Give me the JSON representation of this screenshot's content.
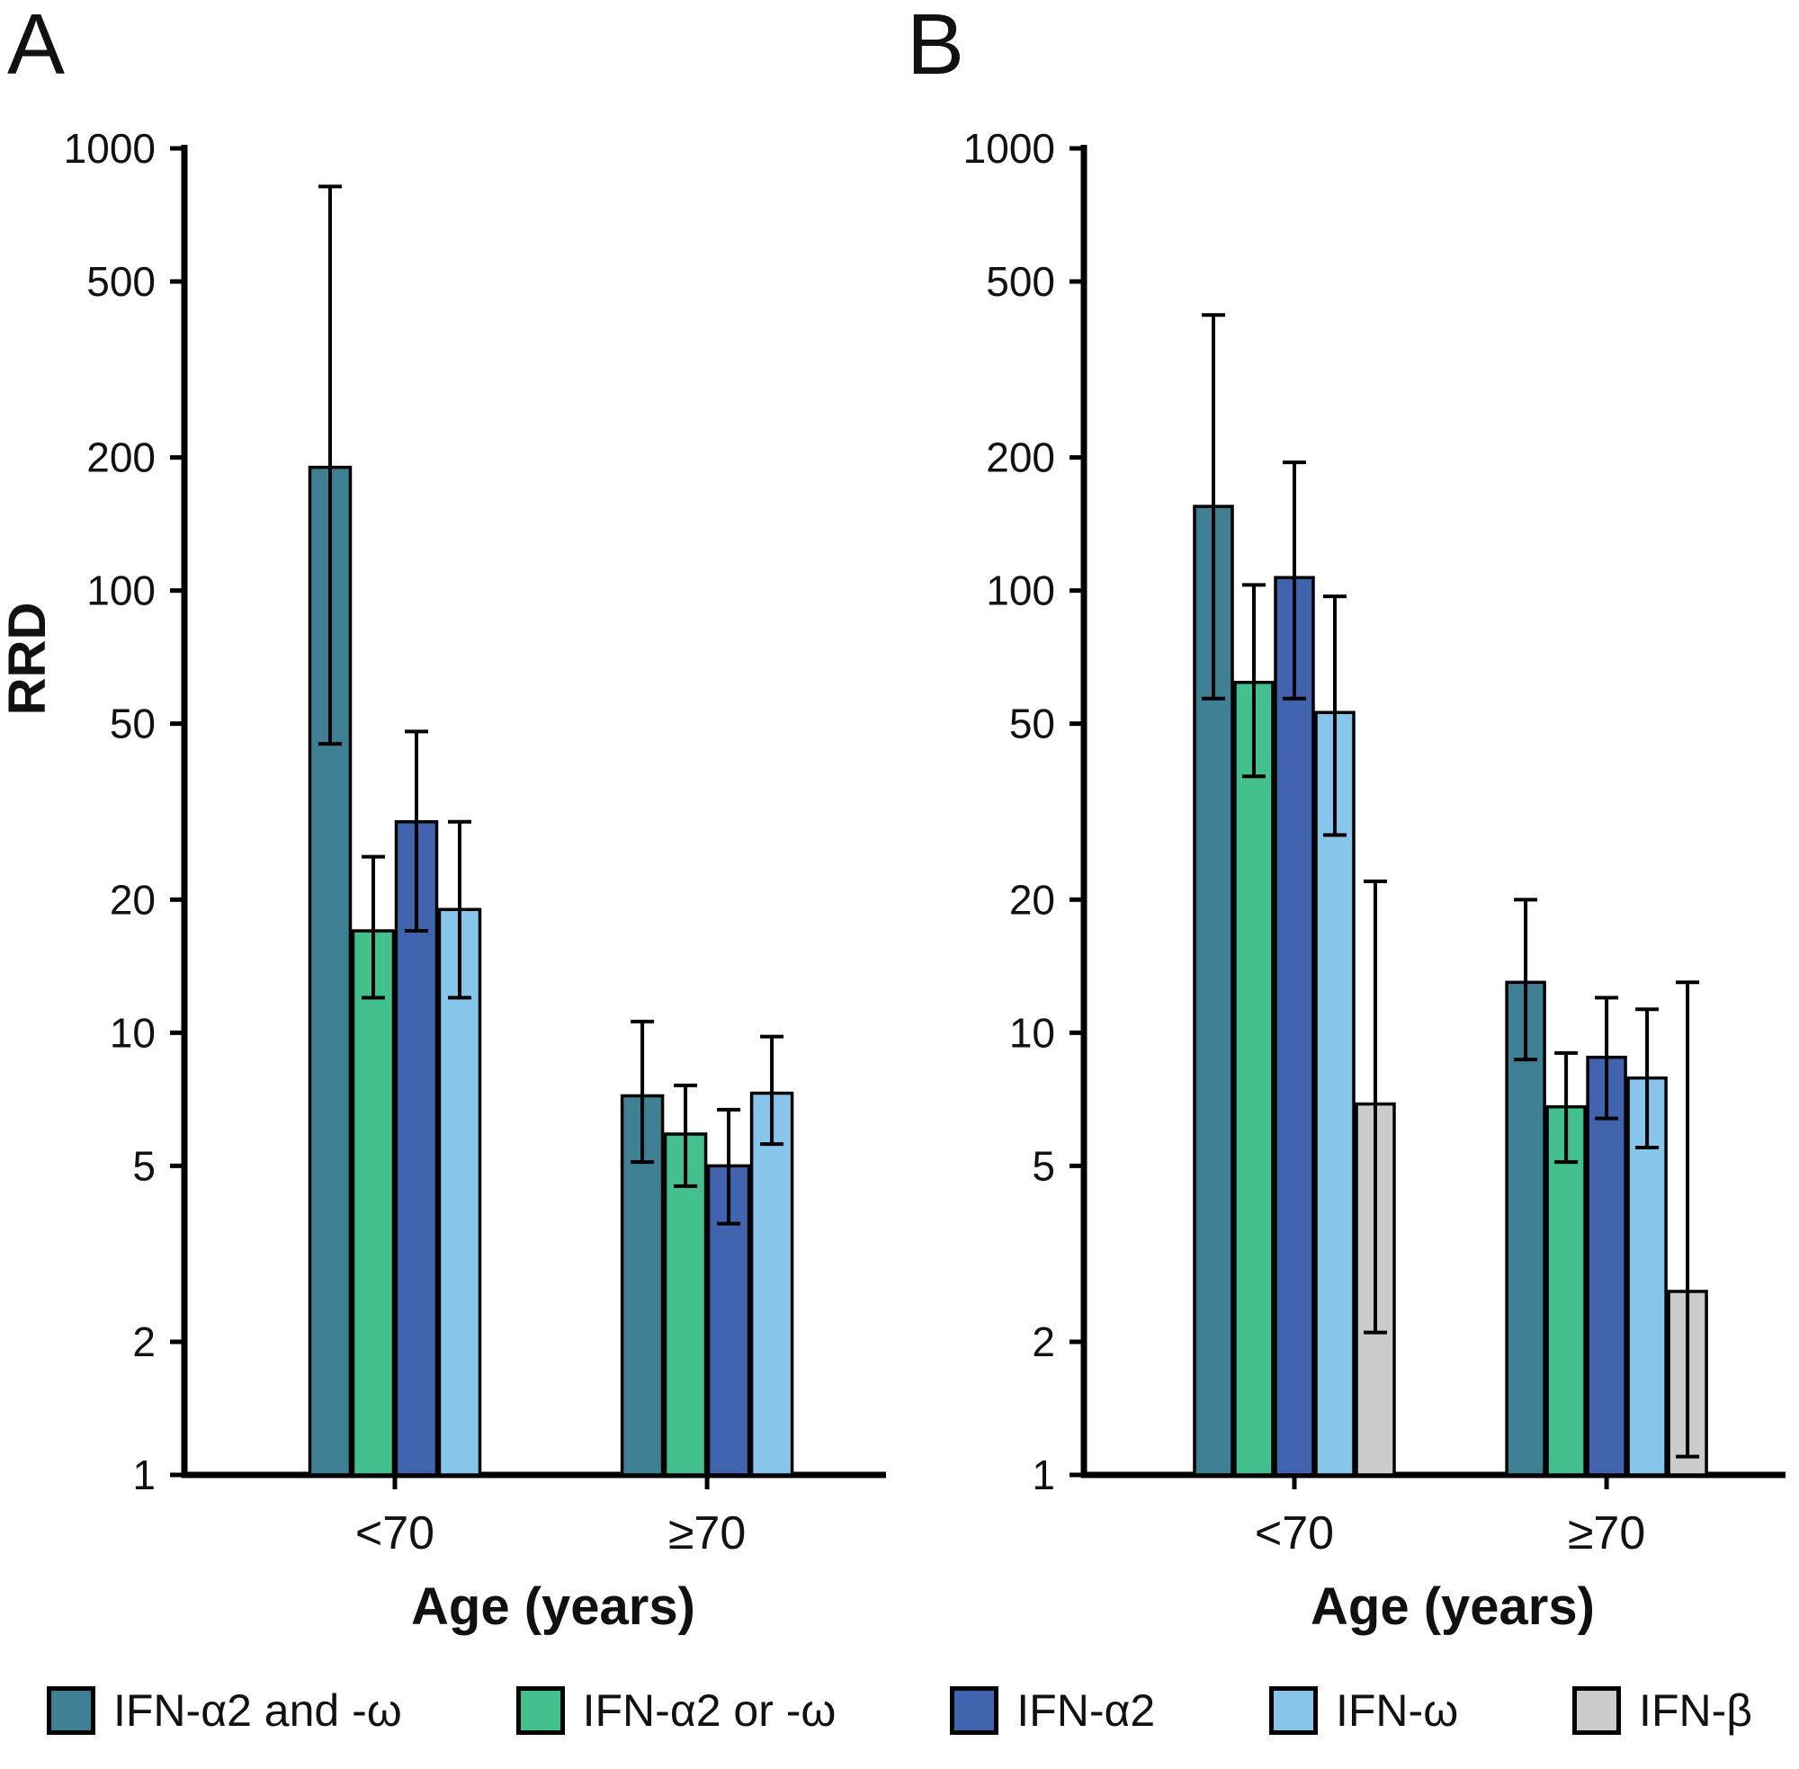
{
  "figure": {
    "ylabel": "RRD",
    "xlabel": "Age (years)",
    "yscale": "log",
    "ylim": [
      1,
      1000
    ],
    "yticks": [
      1000,
      500,
      200,
      100,
      50,
      20,
      10,
      5,
      2,
      1
    ],
    "categories": [
      "<70",
      "≥70"
    ]
  },
  "legend": {
    "items": [
      {
        "label": "IFN-α2 and -ω",
        "color": "#3E7F93"
      },
      {
        "label": "IFN-α2 or -ω",
        "color": "#44BF8E"
      },
      {
        "label": "IFN-α2",
        "color": "#4263AE"
      },
      {
        "label": "IFN-ω",
        "color": "#88C5EA"
      },
      {
        "label": "IFN-β",
        "color": "#C9CBCC"
      }
    ]
  },
  "chart_data": [
    {
      "type": "bar",
      "panel": "A",
      "yscale": "log",
      "ylim": [
        1,
        1000
      ],
      "ylabel": "RRD",
      "xlabel": "Age (years)",
      "categories": [
        "<70",
        "≥70"
      ],
      "series": [
        {
          "name": "IFN-α2 and -ω",
          "color": "#3E7F93",
          "values": [
            190,
            7.2
          ],
          "ci_low": [
            45,
            5.1
          ],
          "ci_high": [
            820,
            10.6
          ]
        },
        {
          "name": "IFN-α2 or -ω",
          "color": "#44BF8E",
          "values": [
            17,
            5.9
          ],
          "ci_low": [
            12,
            4.5
          ],
          "ci_high": [
            25,
            7.6
          ]
        },
        {
          "name": "IFN-α2",
          "color": "#4263AE",
          "values": [
            30,
            5.0
          ],
          "ci_low": [
            17,
            3.7
          ],
          "ci_high": [
            48,
            6.7
          ]
        },
        {
          "name": "IFN-ω",
          "color": "#88C5EA",
          "values": [
            19,
            7.3
          ],
          "ci_low": [
            12,
            5.6
          ],
          "ci_high": [
            30,
            9.8
          ]
        }
      ]
    },
    {
      "type": "bar",
      "panel": "B",
      "yscale": "log",
      "ylim": [
        1,
        1000
      ],
      "ylabel": "",
      "xlabel": "Age (years)",
      "categories": [
        "<70",
        "≥70"
      ],
      "series": [
        {
          "name": "IFN-α2 and -ω",
          "color": "#3E7F93",
          "values": [
            155,
            13
          ],
          "ci_low": [
            57,
            8.7
          ],
          "ci_high": [
            420,
            20
          ]
        },
        {
          "name": "IFN-α2 or -ω",
          "color": "#44BF8E",
          "values": [
            62,
            6.8
          ],
          "ci_low": [
            38,
            5.1
          ],
          "ci_high": [
            103,
            9.0
          ]
        },
        {
          "name": "IFN-α2",
          "color": "#4263AE",
          "values": [
            107,
            8.8
          ],
          "ci_low": [
            57,
            6.4
          ],
          "ci_high": [
            195,
            12
          ]
        },
        {
          "name": "IFN-ω",
          "color": "#88C5EA",
          "values": [
            53,
            7.9
          ],
          "ci_low": [
            28,
            5.5
          ],
          "ci_high": [
            97,
            11.3
          ]
        },
        {
          "name": "IFN-β",
          "color": "#C9CBCC",
          "values": [
            6.9,
            2.6
          ],
          "ci_low": [
            2.1,
            1.1
          ],
          "ci_high": [
            22,
            13
          ]
        }
      ]
    }
  ]
}
